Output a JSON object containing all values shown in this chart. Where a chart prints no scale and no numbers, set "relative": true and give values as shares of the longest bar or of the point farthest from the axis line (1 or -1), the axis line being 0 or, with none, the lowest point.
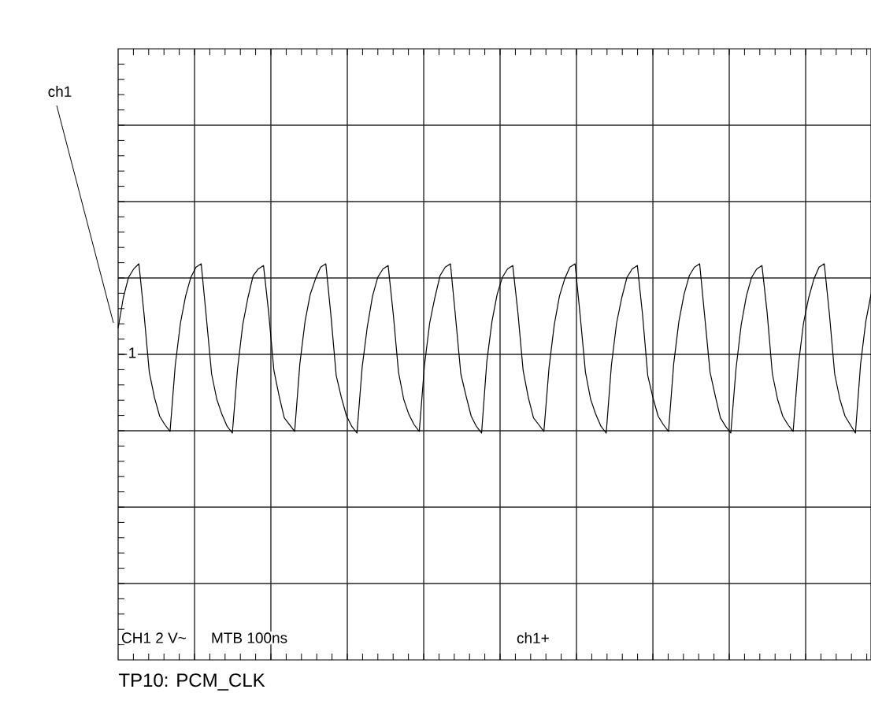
{
  "chart_data": {
    "type": "line",
    "relative": true,
    "title": "TP10: PCM_CLK",
    "annotations": [
      "ch1",
      "1",
      "CH1 2 V~",
      "MTB 100ns",
      "ch1+"
    ],
    "categories": [
      null,
      null,
      null,
      null,
      null,
      null,
      null,
      null,
      null,
      null,
      null,
      null,
      null,
      null,
      null,
      null,
      null,
      null,
      null,
      null,
      null,
      null,
      null,
      null,
      null,
      null,
      null,
      null,
      null,
      null,
      null,
      null,
      null,
      null,
      null,
      null,
      null,
      null,
      null,
      null,
      null,
      null,
      null,
      null,
      null,
      null,
      null,
      null,
      null,
      null,
      null,
      null,
      null,
      null,
      null,
      null,
      null,
      null,
      null,
      null,
      null,
      null,
      null,
      null,
      null,
      null,
      null,
      null,
      null,
      null,
      null,
      null,
      null,
      null,
      null,
      null,
      null,
      null,
      null,
      null,
      null,
      null,
      null,
      null,
      null,
      null,
      null,
      null,
      null,
      null,
      null,
      null,
      null,
      null,
      null,
      null,
      null,
      null,
      null,
      null,
      null,
      null,
      null,
      null,
      null,
      null,
      null,
      null,
      null,
      null,
      null,
      null,
      null,
      null,
      null,
      null,
      null,
      null,
      null,
      null,
      null,
      null,
      null,
      null,
      null,
      null,
      null,
      null,
      null,
      null,
      null,
      null,
      null,
      null,
      null,
      null,
      null,
      null,
      null,
      null,
      null,
      null,
      null,
      null,
      null,
      null
    ],
    "values": [
      0.62,
      0.8,
      0.92,
      0.97,
      1,
      0.7,
      0.36,
      0.21,
      0.1,
      0.05,
      0.01,
      0.4,
      0.65,
      0.81,
      0.92,
      0.98,
      1,
      0.68,
      0.35,
      0.2,
      0.11,
      0.04,
      0,
      0.38,
      0.64,
      0.8,
      0.93,
      0.97,
      0.99,
      0.71,
      0.37,
      0.22,
      0.09,
      0.05,
      0.01,
      0.41,
      0.66,
      0.82,
      0.91,
      0.98,
      1,
      0.69,
      0.34,
      0.21,
      0.1,
      0.04,
      0,
      0.39,
      0.63,
      0.81,
      0.92,
      0.97,
      0.99,
      0.7,
      0.36,
      0.2,
      0.11,
      0.05,
      0.01,
      0.4,
      0.65,
      0.8,
      0.93,
      0.98,
      1,
      0.68,
      0.35,
      0.22,
      0.1,
      0.04,
      0,
      0.42,
      0.66,
      0.82,
      0.92,
      0.97,
      0.99,
      0.71,
      0.37,
      0.21,
      0.09,
      0.05,
      0.01,
      0.39,
      0.64,
      0.81,
      0.91,
      0.98,
      1,
      0.69,
      0.36,
      0.2,
      0.11,
      0.04,
      0,
      0.4,
      0.65,
      0.8,
      0.92,
      0.97,
      0.99,
      0.7,
      0.34,
      0.21,
      0.1,
      0.05,
      0.01,
      0.41,
      0.66,
      0.82,
      0.93,
      0.98,
      1,
      0.68,
      0.36,
      0.22,
      0.09,
      0.04,
      0,
      0.38,
      0.64,
      0.81,
      0.92,
      0.97,
      0.99,
      0.71,
      0.35,
      0.2,
      0.1,
      0.05,
      0.01,
      0.4,
      0.65,
      0.8,
      0.91,
      0.98,
      1,
      0.7,
      0.35,
      0.2,
      0.1,
      0.05,
      0,
      0.41,
      0.66,
      0.82
    ],
    "color": "#000000",
    "grid": true
  }
}
